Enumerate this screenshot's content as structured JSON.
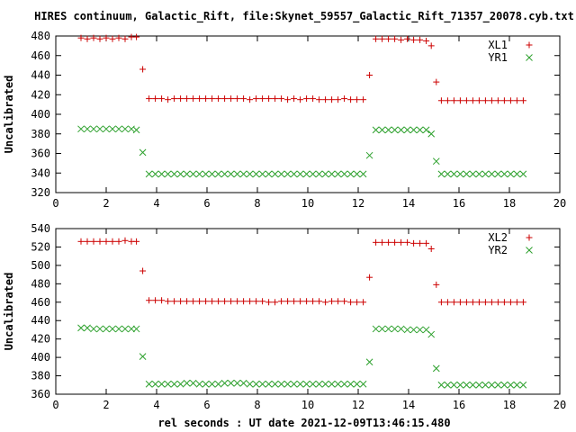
{
  "title": "HIRES continuum, Galactic_Rift, file:Skynet_59557_Galactic_Rift_71357_20078.cyb.txt",
  "xlabel": "rel seconds : UT date 2021-12-09T13:46:15.480",
  "colors": {
    "series_red": "#cc0000",
    "series_green": "#2ca02c"
  },
  "chart_data": [
    {
      "type": "scatter",
      "ylabel": "Uncalibrated",
      "xlim": [
        0,
        20
      ],
      "ylim": [
        320,
        480
      ],
      "xticks": [
        0,
        2,
        4,
        6,
        8,
        10,
        12,
        14,
        16,
        18,
        20
      ],
      "yticks": [
        320,
        340,
        360,
        380,
        400,
        420,
        440,
        460,
        480
      ],
      "legend_position": "top-right",
      "series": [
        {
          "name": "XL1",
          "marker": "plus",
          "x": [
            1.0,
            1.25,
            1.5,
            1.75,
            2.0,
            2.25,
            2.5,
            2.75,
            3.0,
            3.2,
            3.45,
            3.7,
            3.95,
            4.2,
            4.45,
            4.7,
            4.95,
            5.2,
            5.45,
            5.7,
            5.95,
            6.2,
            6.45,
            6.7,
            6.95,
            7.2,
            7.45,
            7.7,
            7.95,
            8.2,
            8.45,
            8.7,
            8.95,
            9.2,
            9.45,
            9.7,
            9.95,
            10.2,
            10.45,
            10.7,
            10.95,
            11.2,
            11.45,
            11.7,
            11.95,
            12.2,
            12.45,
            12.7,
            12.95,
            13.2,
            13.45,
            13.7,
            13.95,
            14.2,
            14.45,
            14.7,
            14.9,
            15.1,
            15.3,
            15.55,
            15.8,
            16.05,
            16.3,
            16.55,
            16.8,
            17.05,
            17.3,
            17.55,
            17.8,
            18.05,
            18.3,
            18.55
          ],
          "y": [
            478,
            477,
            478,
            477,
            478,
            477,
            478,
            477,
            479,
            479,
            446,
            416,
            416,
            416,
            415,
            416,
            416,
            416,
            416,
            416,
            416,
            416,
            416,
            416,
            416,
            416,
            416,
            415,
            416,
            416,
            416,
            416,
            416,
            415,
            416,
            415,
            416,
            416,
            415,
            415,
            415,
            415,
            416,
            415,
            415,
            415,
            440,
            477,
            477,
            477,
            477,
            476,
            477,
            476,
            476,
            475,
            470,
            433,
            414,
            414,
            414,
            414,
            414,
            414,
            414,
            414,
            414,
            414,
            414,
            414,
            414,
            414
          ]
        },
        {
          "name": "YR1",
          "marker": "cross",
          "x": [
            1.0,
            1.25,
            1.5,
            1.75,
            2.0,
            2.25,
            2.5,
            2.75,
            3.0,
            3.2,
            3.45,
            3.7,
            3.95,
            4.2,
            4.45,
            4.7,
            4.95,
            5.2,
            5.45,
            5.7,
            5.95,
            6.2,
            6.45,
            6.7,
            6.95,
            7.2,
            7.45,
            7.7,
            7.95,
            8.2,
            8.45,
            8.7,
            8.95,
            9.2,
            9.45,
            9.7,
            9.95,
            10.2,
            10.45,
            10.7,
            10.95,
            11.2,
            11.45,
            11.7,
            11.95,
            12.2,
            12.45,
            12.7,
            12.95,
            13.2,
            13.45,
            13.7,
            13.95,
            14.2,
            14.45,
            14.7,
            14.9,
            15.1,
            15.3,
            15.55,
            15.8,
            16.05,
            16.3,
            16.55,
            16.8,
            17.05,
            17.3,
            17.55,
            17.8,
            18.05,
            18.3,
            18.55
          ],
          "y": [
            385,
            385,
            385,
            385,
            385,
            385,
            385,
            385,
            385,
            384,
            361,
            339,
            339,
            339,
            339,
            339,
            339,
            339,
            339,
            339,
            339,
            339,
            339,
            339,
            339,
            339,
            339,
            339,
            339,
            339,
            339,
            339,
            339,
            339,
            339,
            339,
            339,
            339,
            339,
            339,
            339,
            339,
            339,
            339,
            339,
            339,
            358,
            384,
            384,
            384,
            384,
            384,
            384,
            384,
            384,
            384,
            380,
            352,
            339,
            339,
            339,
            339,
            339,
            339,
            339,
            339,
            339,
            339,
            339,
            339,
            339,
            339
          ]
        }
      ]
    },
    {
      "type": "scatter",
      "ylabel": "Uncalibrated",
      "xlim": [
        0,
        20
      ],
      "ylim": [
        360,
        540
      ],
      "xticks": [
        0,
        2,
        4,
        6,
        8,
        10,
        12,
        14,
        16,
        18,
        20
      ],
      "yticks": [
        360,
        380,
        400,
        420,
        440,
        460,
        480,
        500,
        520,
        540
      ],
      "legend_position": "top-right",
      "series": [
        {
          "name": "XL2",
          "marker": "plus",
          "x": [
            1.0,
            1.25,
            1.5,
            1.75,
            2.0,
            2.25,
            2.5,
            2.75,
            3.0,
            3.2,
            3.45,
            3.7,
            3.95,
            4.2,
            4.45,
            4.7,
            4.95,
            5.2,
            5.45,
            5.7,
            5.95,
            6.2,
            6.45,
            6.7,
            6.95,
            7.2,
            7.45,
            7.7,
            7.95,
            8.2,
            8.45,
            8.7,
            8.95,
            9.2,
            9.45,
            9.7,
            9.95,
            10.2,
            10.45,
            10.7,
            10.95,
            11.2,
            11.45,
            11.7,
            11.95,
            12.2,
            12.45,
            12.7,
            12.95,
            13.2,
            13.45,
            13.7,
            13.95,
            14.2,
            14.45,
            14.7,
            14.9,
            15.1,
            15.3,
            15.55,
            15.8,
            16.05,
            16.3,
            16.55,
            16.8,
            17.05,
            17.3,
            17.55,
            17.8,
            18.05,
            18.3,
            18.55
          ],
          "y": [
            526,
            526,
            526,
            526,
            526,
            526,
            526,
            527,
            526,
            526,
            494,
            462,
            462,
            462,
            461,
            461,
            461,
            461,
            461,
            461,
            461,
            461,
            461,
            461,
            461,
            461,
            461,
            461,
            461,
            461,
            460,
            460,
            461,
            461,
            461,
            461,
            461,
            461,
            461,
            460,
            461,
            461,
            461,
            460,
            460,
            460,
            487,
            525,
            525,
            525,
            525,
            525,
            525,
            524,
            524,
            524,
            518,
            479,
            460,
            460,
            460,
            460,
            460,
            460,
            460,
            460,
            460,
            460,
            460,
            460,
            460,
            460
          ]
        },
        {
          "name": "YR2",
          "marker": "cross",
          "x": [
            1.0,
            1.25,
            1.5,
            1.75,
            2.0,
            2.25,
            2.5,
            2.75,
            3.0,
            3.2,
            3.45,
            3.7,
            3.95,
            4.2,
            4.45,
            4.7,
            4.95,
            5.2,
            5.45,
            5.7,
            5.95,
            6.2,
            6.45,
            6.7,
            6.95,
            7.2,
            7.45,
            7.7,
            7.95,
            8.2,
            8.45,
            8.7,
            8.95,
            9.2,
            9.45,
            9.7,
            9.95,
            10.2,
            10.45,
            10.7,
            10.95,
            11.2,
            11.45,
            11.7,
            11.95,
            12.2,
            12.45,
            12.7,
            12.95,
            13.2,
            13.45,
            13.7,
            13.95,
            14.2,
            14.45,
            14.7,
            14.9,
            15.1,
            15.3,
            15.55,
            15.8,
            16.05,
            16.3,
            16.55,
            16.8,
            17.05,
            17.3,
            17.55,
            17.8,
            18.05,
            18.3,
            18.55
          ],
          "y": [
            432,
            432,
            431,
            431,
            431,
            431,
            431,
            431,
            431,
            431,
            401,
            371,
            371,
            371,
            371,
            371,
            371,
            372,
            372,
            371,
            371,
            371,
            371,
            372,
            372,
            372,
            372,
            371,
            371,
            371,
            371,
            371,
            371,
            371,
            371,
            371,
            371,
            371,
            371,
            371,
            371,
            371,
            371,
            371,
            371,
            371,
            395,
            431,
            431,
            431,
            431,
            431,
            430,
            430,
            430,
            430,
            425,
            388,
            370,
            370,
            370,
            370,
            370,
            370,
            370,
            370,
            370,
            370,
            370,
            370,
            370,
            370
          ]
        }
      ]
    }
  ]
}
